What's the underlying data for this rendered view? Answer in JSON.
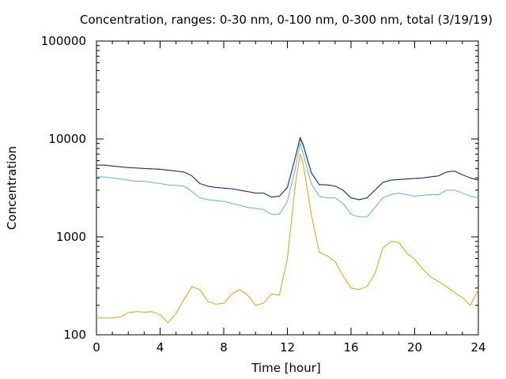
{
  "chart_data": {
    "type": "line",
    "title": "Concentration, ranges: 0-30 nm, 0-100 nm, 0-300 nm, total (3/19/19)",
    "xlabel": "Time [hour]",
    "ylabel": "Concentration",
    "xlim": [
      0,
      24
    ],
    "ylim": [
      100,
      100000
    ],
    "yscale": "log",
    "grid": false,
    "legend": "none",
    "x_ticks": [
      0,
      4,
      8,
      12,
      16,
      20,
      24
    ],
    "x_tick_labels": [
      "0",
      "4",
      "8",
      "12",
      "16",
      "20",
      "24"
    ],
    "y_ticks": [
      100,
      1000,
      10000,
      100000
    ],
    "y_tick_labels": [
      "100",
      "1000",
      "10000",
      "100000"
    ],
    "x": [
      0,
      0.5,
      1,
      1.5,
      2,
      2.5,
      3,
      3.5,
      4,
      4.5,
      5,
      5.5,
      6,
      6.5,
      7,
      7.5,
      8,
      8.5,
      9,
      9.5,
      10,
      10.5,
      11,
      11.5,
      12,
      12.5,
      12.8,
      13,
      13.5,
      14,
      14.5,
      15,
      15.5,
      16,
      16.5,
      17,
      17.5,
      18,
      18.5,
      19,
      19.5,
      20,
      20.5,
      21,
      21.5,
      22,
      22.5,
      23,
      23.5,
      24
    ],
    "series": [
      {
        "color": "#e6a000",
        "values": [
          150,
          148,
          149,
          152,
          168,
          172,
          170,
          172,
          160,
          133,
          165,
          230,
          310,
          290,
          220,
          205,
          210,
          260,
          290,
          255,
          200,
          210,
          260,
          255,
          600,
          3400,
          7000,
          5500,
          1700,
          700,
          640,
          560,
          400,
          300,
          290,
          310,
          420,
          770,
          900,
          880,
          680,
          590,
          470,
          390,
          350,
          310,
          270,
          240,
          200,
          290
        ]
      },
      {
        "color": "#56b4e9",
        "values": [
          4100,
          4100,
          4000,
          3900,
          3800,
          3700,
          3700,
          3600,
          3500,
          3400,
          3350,
          3300,
          2900,
          2500,
          2400,
          2350,
          2300,
          2200,
          2100,
          2000,
          1950,
          1900,
          1700,
          1700,
          2300,
          5000,
          9000,
          7000,
          3500,
          2600,
          2500,
          2500,
          2200,
          1700,
          1600,
          1600,
          2000,
          2500,
          2700,
          2800,
          2700,
          2600,
          2650,
          2700,
          2700,
          3000,
          3000,
          2800,
          2600,
          2500
        ]
      },
      {
        "color": "#009e73",
        "values": [
          5400,
          5400,
          5300,
          5200,
          5100,
          5050,
          5000,
          4950,
          4900,
          4800,
          4700,
          4600,
          4200,
          3500,
          3300,
          3200,
          3150,
          3100,
          3000,
          2900,
          2800,
          2800,
          2550,
          2600,
          3200,
          6500,
          10000,
          8500,
          4500,
          3400,
          3400,
          3300,
          3000,
          2500,
          2400,
          2500,
          3000,
          3600,
          3800,
          3850,
          3900,
          3950,
          4000,
          4100,
          4200,
          4600,
          4700,
          4300,
          4000,
          3800
        ]
      },
      {
        "color": "#1a2a8a",
        "values": [
          5400,
          5400,
          5300,
          5200,
          5100,
          5050,
          5000,
          4950,
          4900,
          4800,
          4700,
          4600,
          4200,
          3500,
          3300,
          3200,
          3150,
          3100,
          3000,
          2900,
          2800,
          2800,
          2550,
          2600,
          3200,
          6500,
          10400,
          8700,
          4550,
          3420,
          3400,
          3300,
          3000,
          2500,
          2400,
          2500,
          3000,
          3600,
          3800,
          3850,
          3900,
          3950,
          4000,
          4100,
          4200,
          4600,
          4700,
          4300,
          4000,
          3800
        ]
      }
    ]
  }
}
